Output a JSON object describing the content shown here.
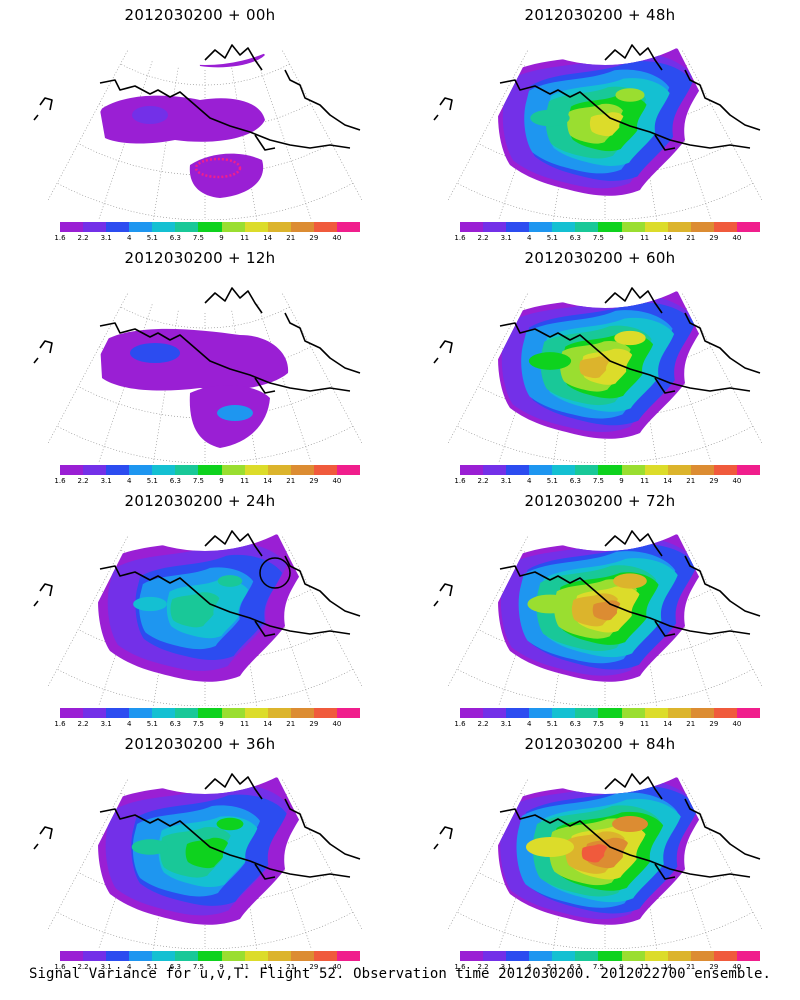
{
  "panels": [
    {
      "title": "2012030200 + 00h",
      "lead": 0
    },
    {
      "title": "2012030200 + 48h",
      "lead": 48
    },
    {
      "title": "2012030200 + 12h",
      "lead": 12
    },
    {
      "title": "2012030200 + 60h",
      "lead": 60
    },
    {
      "title": "2012030200 + 24h",
      "lead": 24
    },
    {
      "title": "2012030200 + 72h",
      "lead": 72
    },
    {
      "title": "2012030200 + 36h",
      "lead": 36
    },
    {
      "title": "2012030200 + 84h",
      "lead": 84
    }
  ],
  "colorbar": {
    "tick_labels": [
      "1.6",
      "2.2",
      "3.1",
      "4",
      "5.1",
      "6.3",
      "7.5",
      "9",
      "11",
      "14",
      "21",
      "29",
      "40"
    ],
    "colors": [
      "#9a1fd4",
      "#7330e8",
      "#2c4cf0",
      "#1e96f0",
      "#14c0d2",
      "#19c898",
      "#0ed21e",
      "#9ade30",
      "#dcdc2a",
      "#dcb42c",
      "#dc8c32",
      "#f05a3c",
      "#f01e8c"
    ]
  },
  "footer": "Signal Variance for u,v,T. Flight 52. Observation time 2012030200. 2012022700 ensemble."
}
